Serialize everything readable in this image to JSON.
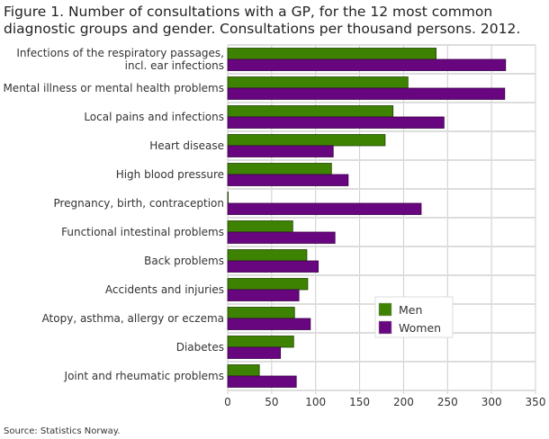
{
  "chart_data": {
    "type": "bar",
    "orientation": "horizontal",
    "title": "Figure 1. Number of consultations with a GP, for the 12 most common diagnostic groups and gender. Consultations per thousand persons. 2012.",
    "categories": [
      [
        "Infections of the respiratory passages,",
        "incl. ear infections"
      ],
      [
        "Mental illness or mental health problems"
      ],
      [
        "Local pains and infections"
      ],
      [
        "Heart disease"
      ],
      [
        "High blood pressure"
      ],
      [
        "Pregnancy, birth, contraception"
      ],
      [
        "Functional intestinal problems"
      ],
      [
        "Back problems"
      ],
      [
        "Accidents and injuries"
      ],
      [
        "Atopy, asthma, allergy or eczema"
      ],
      [
        "Diabetes"
      ],
      [
        "Joint and rheumatic problems"
      ]
    ],
    "series": [
      {
        "name": "Men",
        "color": "#3d8200",
        "values": [
          237,
          205,
          188,
          179,
          118,
          0,
          74,
          90,
          91,
          76,
          75,
          36
        ]
      },
      {
        "name": "Women",
        "color": "#680680",
        "values": [
          316,
          315,
          246,
          120,
          137,
          220,
          122,
          103,
          81,
          94,
          60,
          78
        ]
      }
    ],
    "xlim": [
      0,
      350
    ],
    "xticks": [
      "0",
      "50",
      "100",
      "150",
      "200",
      "250",
      "300",
      "350"
    ],
    "grid": true,
    "legend_position": "bottom-right"
  },
  "source": "Source: Statistics Norway."
}
